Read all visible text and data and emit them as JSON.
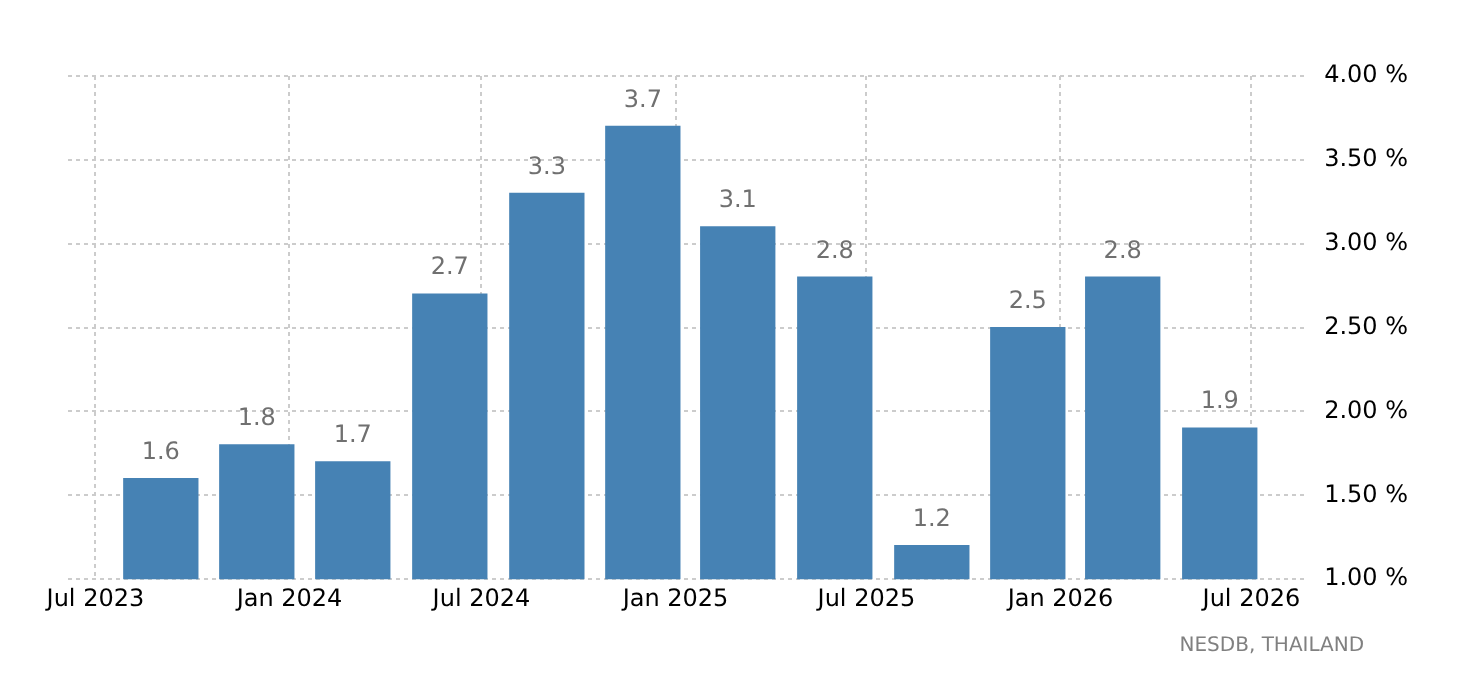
{
  "chart_data": {
    "type": "bar",
    "x": [
      "2023-09-01",
      "2023-12-01",
      "2024-03-01",
      "2024-06-01",
      "2024-09-01",
      "2024-12-01",
      "2025-03-01",
      "2025-06-01",
      "2025-09-01",
      "2025-12-01",
      "2026-03-01",
      "2026-06-01"
    ],
    "values": [
      1.6,
      1.8,
      1.7,
      2.7,
      3.3,
      3.7,
      3.1,
      2.8,
      1.2,
      2.5,
      2.8,
      1.9
    ],
    "color": "#4682b4",
    "xlim": [
      "2023-06-05",
      "2026-08-20"
    ],
    "xticks": [
      {
        "value": "2023-07",
        "label": "Jul 2023"
      },
      {
        "value": "2024-01",
        "label": "Jan 2024"
      },
      {
        "value": "2024-07",
        "label": "Jul 2024"
      },
      {
        "value": "2025-01",
        "label": "Jan 2025"
      },
      {
        "value": "2025-07",
        "label": "Jul 2025"
      },
      {
        "value": "2026-01",
        "label": "Jan 2026"
      },
      {
        "value": "2026-07",
        "label": "Jul 2026"
      }
    ],
    "ylim": [
      1,
      4
    ],
    "yticks": [
      {
        "value": 1,
        "label": "1.00 %"
      },
      {
        "value": 1.5,
        "label": "1.50 %"
      },
      {
        "value": 2,
        "label": "2.00 %"
      },
      {
        "value": 2.5,
        "label": "2.50 %"
      },
      {
        "value": 3,
        "label": "3.00 %"
      },
      {
        "value": 3.5,
        "label": "3.50 %"
      },
      {
        "value": 4,
        "label": "4.00 %"
      }
    ],
    "grid": true,
    "data_labels": true,
    "annotations": [
      "NESDB, THAILAND"
    ]
  }
}
